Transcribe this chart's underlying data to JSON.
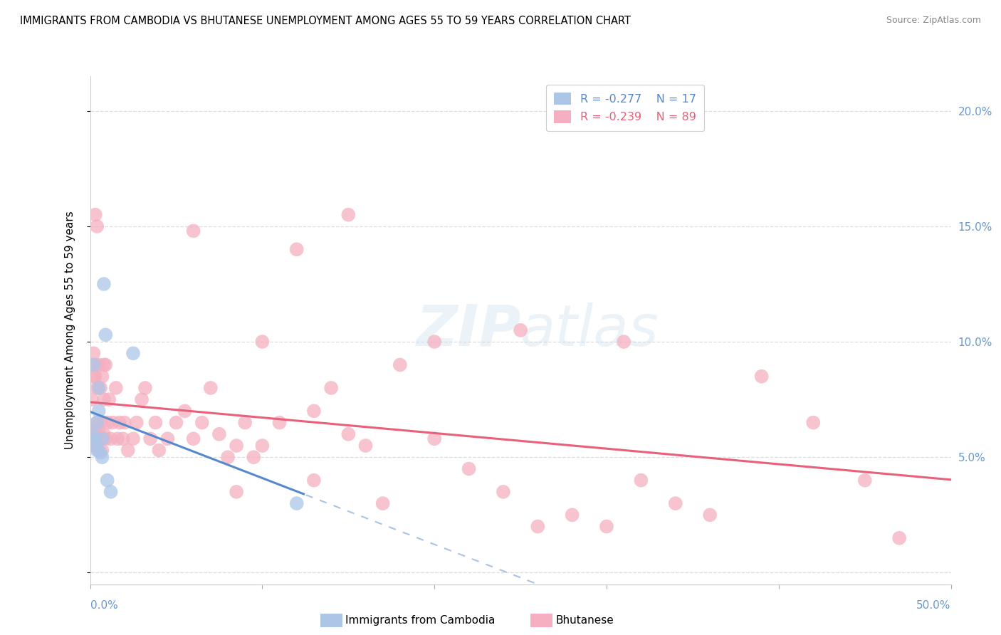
{
  "title": "IMMIGRANTS FROM CAMBODIA VS BHUTANESE UNEMPLOYMENT AMONG AGES 55 TO 59 YEARS CORRELATION CHART",
  "source": "Source: ZipAtlas.com",
  "ylabel": "Unemployment Among Ages 55 to 59 years",
  "xlim": [
    0.0,
    0.5
  ],
  "ylim": [
    -0.005,
    0.215
  ],
  "legend1_R": "-0.277",
  "legend1_N": "17",
  "legend2_R": "-0.239",
  "legend2_N": "89",
  "blue_color": "#adc6e8",
  "pink_color": "#f5afc0",
  "trend_blue": "#5588cc",
  "trend_pink": "#e8607a",
  "watermark": "ZIPatlas",
  "right_ytick_color": "#6699cc",
  "xtick_label_color": "#6699cc",
  "grid_color": "#dddddd",
  "blue_points_x": [
    0.001,
    0.002,
    0.002,
    0.003,
    0.004,
    0.004,
    0.005,
    0.005,
    0.006,
    0.007,
    0.007,
    0.008,
    0.009,
    0.01,
    0.012,
    0.025,
    0.12
  ],
  "blue_points_y": [
    0.06,
    0.055,
    0.09,
    0.058,
    0.053,
    0.065,
    0.08,
    0.07,
    0.052,
    0.058,
    0.05,
    0.125,
    0.103,
    0.04,
    0.035,
    0.095,
    0.03
  ],
  "pink_points_x": [
    0.001,
    0.001,
    0.001,
    0.002,
    0.002,
    0.002,
    0.002,
    0.003,
    0.003,
    0.003,
    0.003,
    0.003,
    0.004,
    0.004,
    0.004,
    0.004,
    0.005,
    0.005,
    0.005,
    0.005,
    0.006,
    0.006,
    0.006,
    0.007,
    0.007,
    0.007,
    0.008,
    0.008,
    0.008,
    0.009,
    0.009,
    0.01,
    0.011,
    0.012,
    0.013,
    0.015,
    0.016,
    0.017,
    0.019,
    0.02,
    0.022,
    0.025,
    0.027,
    0.03,
    0.032,
    0.035,
    0.038,
    0.04,
    0.045,
    0.05,
    0.055,
    0.06,
    0.065,
    0.07,
    0.075,
    0.08,
    0.085,
    0.09,
    0.095,
    0.1,
    0.11,
    0.12,
    0.13,
    0.14,
    0.15,
    0.16,
    0.18,
    0.2,
    0.22,
    0.24,
    0.26,
    0.28,
    0.3,
    0.32,
    0.34,
    0.36,
    0.39,
    0.42,
    0.45,
    0.47,
    0.1,
    0.06,
    0.15,
    0.2,
    0.25,
    0.31,
    0.085,
    0.13,
    0.17
  ],
  "pink_points_y": [
    0.06,
    0.055,
    0.075,
    0.058,
    0.062,
    0.085,
    0.095,
    0.058,
    0.062,
    0.085,
    0.09,
    0.155,
    0.058,
    0.065,
    0.08,
    0.15,
    0.053,
    0.058,
    0.062,
    0.09,
    0.058,
    0.065,
    0.08,
    0.053,
    0.058,
    0.085,
    0.06,
    0.075,
    0.09,
    0.058,
    0.09,
    0.065,
    0.075,
    0.058,
    0.065,
    0.08,
    0.058,
    0.065,
    0.058,
    0.065,
    0.053,
    0.058,
    0.065,
    0.075,
    0.08,
    0.058,
    0.065,
    0.053,
    0.058,
    0.065,
    0.07,
    0.058,
    0.065,
    0.08,
    0.06,
    0.05,
    0.055,
    0.065,
    0.05,
    0.055,
    0.065,
    0.14,
    0.07,
    0.08,
    0.06,
    0.055,
    0.09,
    0.058,
    0.045,
    0.035,
    0.02,
    0.025,
    0.02,
    0.04,
    0.03,
    0.025,
    0.085,
    0.065,
    0.04,
    0.015,
    0.1,
    0.148,
    0.155,
    0.1,
    0.105,
    0.1,
    0.035,
    0.04,
    0.03
  ]
}
